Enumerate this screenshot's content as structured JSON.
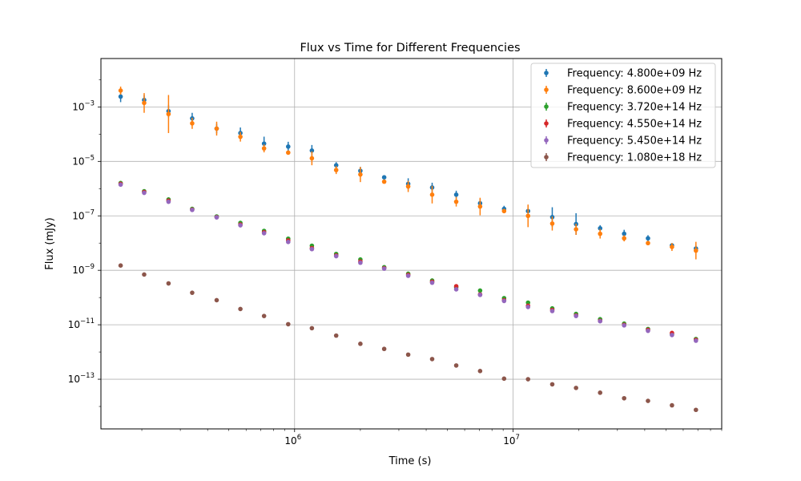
{
  "chart_data": {
    "type": "scatter",
    "title": "Flux vs Time for Different Frequencies",
    "xlabel": "Time (s)",
    "ylabel": "Flux (mJy)",
    "xscale": "log",
    "yscale": "log",
    "xlim": [
      130000,
      90000000
    ],
    "ylim": [
      1.5e-15,
      0.06
    ],
    "grid": true,
    "legend_position": "top-right",
    "x_tick_labels": [
      {
        "value": 1000000,
        "base": "10",
        "exp": "6"
      },
      {
        "value": 10000000,
        "base": "10",
        "exp": "7"
      }
    ],
    "y_tick_labels": [
      {
        "value": 0.001,
        "base": "10",
        "exp": "−3"
      },
      {
        "value": 1e-05,
        "base": "10",
        "exp": "−5"
      },
      {
        "value": 1e-07,
        "base": "10",
        "exp": "−7"
      },
      {
        "value": 1e-09,
        "base": "10",
        "exp": "−9"
      },
      {
        "value": 1e-11,
        "base": "10",
        "exp": "−11"
      },
      {
        "value": 1e-13,
        "base": "10",
        "exp": "−13"
      }
    ],
    "x": [
      160000,
      205000,
      265000,
      340000,
      440000,
      565000,
      725000,
      935000,
      1200000,
      1550000,
      2000000,
      2570000,
      3310000,
      4260000,
      5490000,
      7060000,
      9090000,
      11700000,
      15100000,
      19400000,
      25000000,
      32200000,
      41400000,
      53300000,
      68600000
    ],
    "series": [
      {
        "name": "Frequency: 4.800e+09 Hz",
        "color": "#1f77b4",
        "values": [
          0.0024,
          0.0018,
          0.0007,
          0.00038,
          0.00016,
          0.00011,
          4.5e-05,
          3.5e-05,
          2.5e-05,
          7.2e-06,
          4.5e-06,
          2.6e-06,
          1.5e-06,
          1.1e-06,
          6e-07,
          2.9e-07,
          1.8e-07,
          1.5e-07,
          9e-08,
          5e-08,
          3.5e-08,
          2.2e-08,
          1.5e-08,
          8.2e-09,
          6.3e-09
        ],
        "err_factor": [
          1.6,
          1.5,
          1.7,
          1.6,
          1.5,
          1.6,
          1.8,
          1.5,
          1.6,
          1.3,
          1.4,
          1.1,
          1.6,
          1.5,
          1.4,
          1.4,
          1.3,
          1.5,
          2.3,
          2.5,
          1.3,
          1.4,
          1.3,
          1.2,
          1.3
        ]
      },
      {
        "name": "Frequency: 8.600e+09 Hz",
        "color": "#ff7f0e",
        "values": [
          0.004,
          0.0014,
          0.00055,
          0.00025,
          0.00016,
          8e-05,
          3e-05,
          2.1e-05,
          1.3e-05,
          4.8e-06,
          3.3e-06,
          1.8e-06,
          1.2e-06,
          6e-07,
          3.3e-07,
          2.2e-07,
          1.5e-07,
          1e-07,
          5.2e-08,
          3.2e-08,
          2.2e-08,
          1.5e-08,
          1e-08,
          7.2e-09,
          5.3e-09
        ],
        "err_factor": [
          1.4,
          2.3,
          5,
          1.6,
          1.8,
          1.5,
          1.4,
          1.2,
          1.8,
          1.4,
          1.9,
          1.1,
          1.6,
          2.1,
          1.5,
          2.1,
          1.2,
          2.6,
          1.8,
          1.6,
          1.5,
          1.3,
          1.2,
          1.4,
          2.1
        ]
      },
      {
        "name": "Frequency: 3.720e+14 Hz",
        "color": "#2ca02c",
        "values": [
          1.6e-06,
          8e-07,
          4e-07,
          1.8e-07,
          9.5e-08,
          5.5e-08,
          2.8e-08,
          1.45e-08,
          8e-09,
          4e-09,
          2.5e-09,
          1.3e-09,
          7.5e-10,
          4.2e-10,
          2.4e-10,
          1.8e-10,
          9.5e-11,
          6.5e-11,
          4e-11,
          2.5e-11,
          1.6e-11,
          1.1e-11,
          7e-12,
          4.5e-12,
          3e-12
        ],
        "err_factor": [
          1.05,
          1.05,
          1.05,
          1.05,
          1.05,
          1.05,
          1.05,
          1.05,
          1.05,
          1.05,
          1.05,
          1.05,
          1.05,
          1.05,
          1.05,
          1.05,
          1.05,
          1.05,
          1.05,
          1.05,
          1.05,
          1.05,
          1.05,
          1.05,
          1.05
        ]
      },
      {
        "name": "Frequency: 4.550e+14 Hz",
        "color": "#d62728",
        "values": [
          1.5e-06,
          7.5e-07,
          3.6e-07,
          1.7e-07,
          9e-08,
          4.8e-08,
          2.5e-08,
          1.25e-08,
          6.5e-09,
          3.5e-09,
          2.1e-09,
          1.2e-09,
          6.8e-10,
          3.8e-10,
          2.6e-10,
          1.3e-10,
          8e-11,
          5e-11,
          3.5e-11,
          2.2e-11,
          1.4e-11,
          1e-11,
          6.5e-12,
          5e-12,
          2.8e-12
        ],
        "err_factor": [
          1.05,
          1.05,
          1.05,
          1.05,
          1.05,
          1.05,
          1.05,
          1.05,
          1.05,
          1.05,
          1.05,
          1.05,
          1.05,
          1.05,
          1.05,
          1.05,
          1.05,
          1.05,
          1.05,
          1.05,
          1.05,
          1.05,
          1.05,
          1.05,
          1.05
        ]
      },
      {
        "name": "Frequency: 5.450e+14 Hz",
        "color": "#9467bd",
        "values": [
          1.4e-06,
          7e-07,
          3.3e-07,
          1.65e-07,
          8.8e-08,
          4.5e-08,
          2.3e-08,
          1.1e-08,
          6e-09,
          3.3e-09,
          1.9e-09,
          1.15e-09,
          6.3e-10,
          3.5e-10,
          2e-10,
          1.25e-10,
          7.5e-11,
          4.5e-11,
          3.2e-11,
          2.1e-11,
          1.35e-11,
          9.5e-12,
          6e-12,
          4.2e-12,
          2.6e-12
        ],
        "err_factor": [
          1.05,
          1.05,
          1.05,
          1.05,
          1.05,
          1.05,
          1.05,
          1.05,
          1.05,
          1.05,
          1.05,
          1.05,
          1.05,
          1.05,
          1.05,
          1.05,
          1.05,
          1.05,
          1.05,
          1.05,
          1.05,
          1.05,
          1.05,
          1.05,
          1.05
        ]
      },
      {
        "name": "Frequency: 1.080e+18 Hz",
        "color": "#8c564b",
        "values": [
          1.5e-09,
          7e-10,
          3.3e-10,
          1.5e-10,
          8e-11,
          3.8e-11,
          2.1e-11,
          1.05e-11,
          7.5e-12,
          4e-12,
          2e-12,
          1.3e-12,
          8e-13,
          5.5e-13,
          3.2e-13,
          2e-13,
          1.05e-13,
          1e-13,
          6.5e-14,
          4.8e-14,
          3.2e-14,
          2e-14,
          1.6e-14,
          1.1e-14,
          7.5e-15
        ],
        "err_factor": [
          1.05,
          1.05,
          1.05,
          1.05,
          1.05,
          1.05,
          1.05,
          1.05,
          1.05,
          1.05,
          1.05,
          1.05,
          1.05,
          1.05,
          1.05,
          1.05,
          1.05,
          1.05,
          1.05,
          1.05,
          1.05,
          1.05,
          1.05,
          1.05,
          1.05
        ]
      }
    ]
  }
}
